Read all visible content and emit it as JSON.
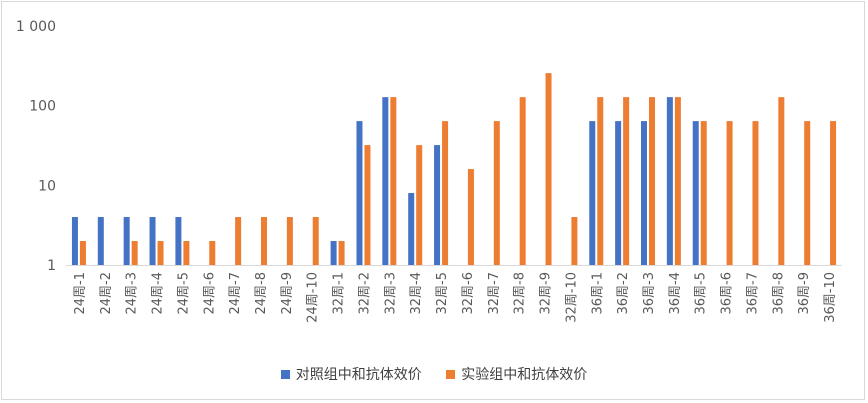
{
  "chart_data": {
    "type": "bar",
    "title": "",
    "xlabel": "",
    "ylabel": "",
    "yscale": "log",
    "ylim": [
      1,
      1000
    ],
    "yticks": [
      {
        "value": 1,
        "label": "1"
      },
      {
        "value": 10,
        "label": "10"
      },
      {
        "value": 100,
        "label": "100"
      },
      {
        "value": 1000,
        "label": "1 000"
      }
    ],
    "grid": false,
    "legend": "bottom",
    "categories": [
      "24周-1",
      "24周-2",
      "24周-3",
      "24周-4",
      "24周-5",
      "24周-6",
      "24周-7",
      "24周-8",
      "24周-9",
      "24周-10",
      "32周-1",
      "32周-2",
      "32周-3",
      "32周-4",
      "32周-5",
      "32周-6",
      "32周-7",
      "32周-8",
      "32周-9",
      "32周-10",
      "36周-1",
      "36周-2",
      "36周-3",
      "36周-4",
      "36周-5",
      "36周-6",
      "36周-7",
      "36周-8",
      "36周-9",
      "36周-10"
    ],
    "series": [
      {
        "name": "对照组中和抗体效价",
        "color": "#4472c4",
        "values": [
          4,
          4,
          4,
          4,
          4,
          null,
          null,
          null,
          null,
          null,
          2,
          64,
          128,
          8,
          32,
          null,
          null,
          null,
          null,
          null,
          64,
          64,
          64,
          128,
          64,
          null,
          null,
          null,
          null,
          null
        ]
      },
      {
        "name": "实验组中和抗体效价",
        "color": "#ed7d31",
        "values": [
          2,
          null,
          2,
          2,
          2,
          2,
          4,
          4,
          4,
          4,
          2,
          32,
          128,
          32,
          64,
          16,
          64,
          128,
          256,
          4,
          128,
          128,
          128,
          128,
          64,
          64,
          64,
          128,
          64,
          64
        ]
      }
    ]
  }
}
